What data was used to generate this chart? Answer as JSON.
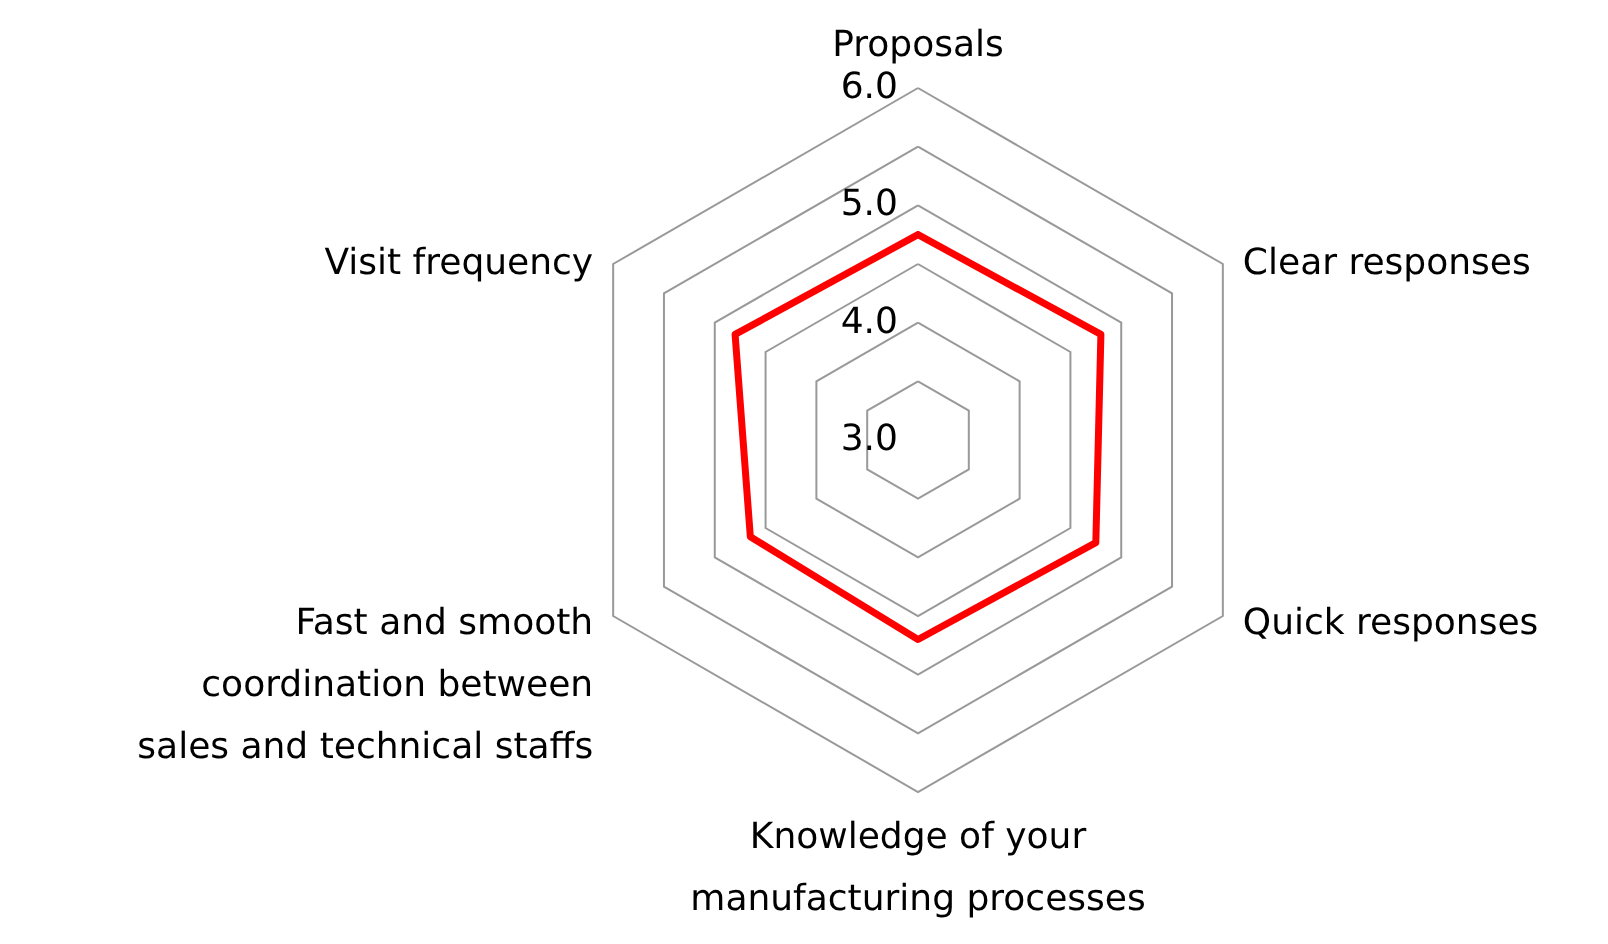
{
  "chart_data": {
    "type": "radar",
    "categories": [
      "Proposals",
      "Clear responses",
      "Quick responses",
      "Knowledge of your manufacturing processes",
      "Fast and smooth coordination between sales and technical staffs",
      "Visit frequency"
    ],
    "series": [
      {
        "color": "#ff0000",
        "values": [
          4.75,
          4.8,
          4.75,
          4.7,
          4.65,
          4.8
        ]
      }
    ],
    "ylim": [
      3,
      6
    ],
    "yticks": [
      {
        "value": 3,
        "label": "3.0"
      },
      {
        "value": 4,
        "label": "4.0"
      },
      {
        "value": 5,
        "label": "5.0"
      },
      {
        "value": 6,
        "label": "6.0"
      }
    ],
    "grid": true
  }
}
